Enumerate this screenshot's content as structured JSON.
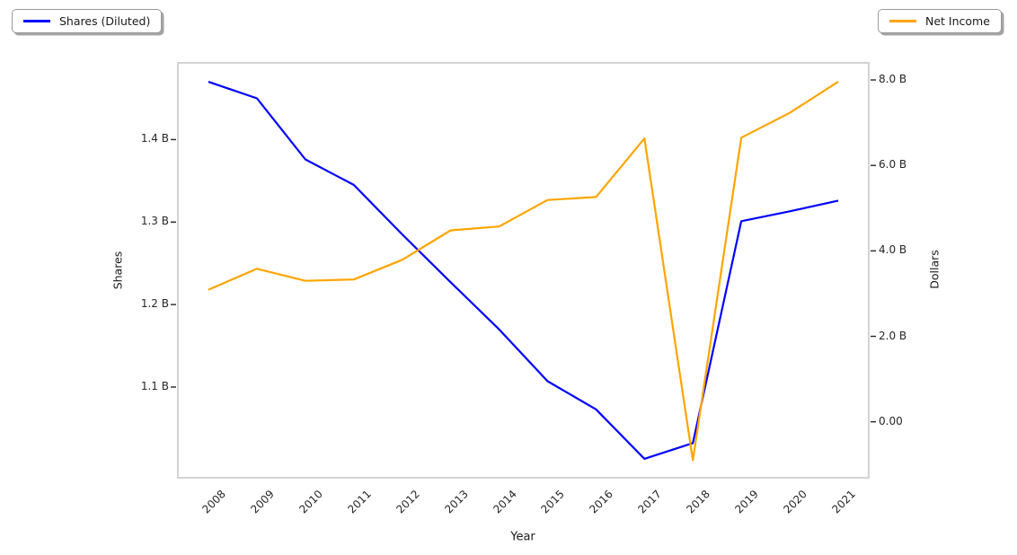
{
  "chart_data": {
    "type": "line",
    "title": "",
    "xlabel": "Year",
    "ylabel_left": "Shares",
    "ylabel_right": "Dollars",
    "x": [
      2008,
      2009,
      2010,
      2011,
      2012,
      2013,
      2014,
      2015,
      2016,
      2017,
      2018,
      2019,
      2020,
      2021
    ],
    "series": [
      {
        "name": "Shares (Diluted)",
        "axis": "left",
        "color": "#0000ff",
        "unit": "B",
        "values": [
          1.47,
          1.45,
          1.376,
          1.345,
          1.285,
          1.227,
          1.17,
          1.107,
          1.073,
          1.013,
          1.032,
          1.301,
          1.313,
          1.326
        ]
      },
      {
        "name": "Net Income",
        "axis": "right",
        "color": "#ffa500",
        "unit": "B",
        "values": [
          3.09,
          3.58,
          3.3,
          3.33,
          3.79,
          4.48,
          4.57,
          5.19,
          5.26,
          6.63,
          -0.9,
          6.65,
          7.23,
          7.96
        ]
      }
    ],
    "xlim": [
      2007.35,
      2021.65
    ],
    "ylim_left": [
      0.99,
      1.493
    ],
    "ylim_right": [
      -1.31,
      8.4
    ],
    "yticks_left": {
      "values": [
        1.1,
        1.2,
        1.3,
        1.4
      ],
      "labels": [
        "1.1 B",
        "1.2 B",
        "1.3 B",
        "1.4 B"
      ]
    },
    "yticks_right": {
      "values": [
        0,
        2,
        4,
        6,
        8
      ],
      "labels": [
        "0.00",
        "2.0 B",
        "4.0 B",
        "6.0 B",
        "8.0 B"
      ]
    },
    "xtick_labels": [
      "2008",
      "2009",
      "2010",
      "2011",
      "2012",
      "2013",
      "2014",
      "2015",
      "2016",
      "2017",
      "2018",
      "2019",
      "2020",
      "2021"
    ],
    "grid": false,
    "legend_positions": [
      "upper-left",
      "upper-right"
    ]
  },
  "colors": {
    "plot_border": "#d3d3d3",
    "tick": "#262626",
    "text": "#1a1a1a"
  }
}
